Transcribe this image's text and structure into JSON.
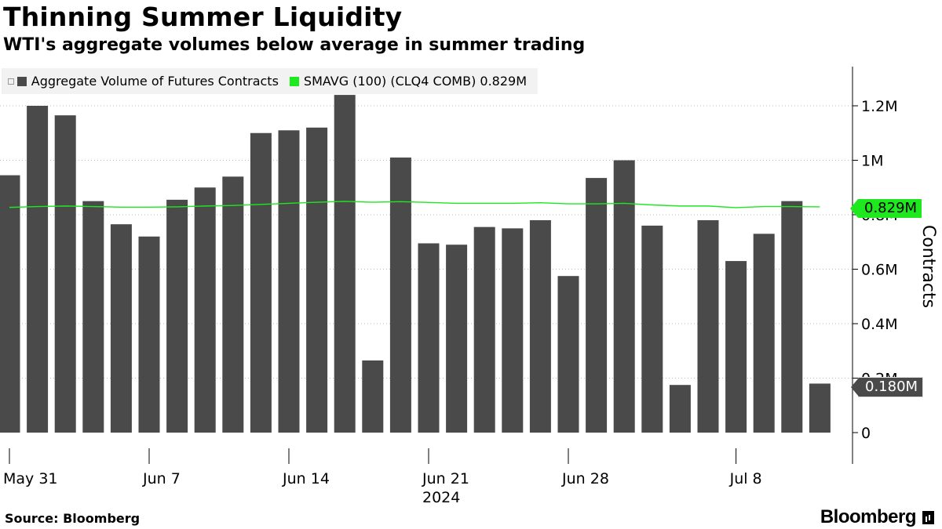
{
  "title": "Thinning Summer Liquidity",
  "subtitle": "WTI's aggregate volumes below average in summer trading",
  "legend": {
    "bars_label": "Aggregate Volume of Futures Contracts",
    "avg_label": "SMAVG (100) (CLQ4 COMB) 0.829M"
  },
  "tags": {
    "avg": "0.829M",
    "last": "0.180M"
  },
  "footer": {
    "source": "Source: Bloomberg",
    "brand": "Bloomberg"
  },
  "colors": {
    "bars": "#4a4a4a",
    "avg_line": "#1ee81e",
    "axis": "#000000"
  },
  "chart_data": {
    "type": "bar",
    "title": "Thinning Summer Liquidity",
    "ylabel": "Contracts",
    "ylim": [
      0,
      1.3
    ],
    "y_unit": "M",
    "y_ticks": [
      0,
      0.2,
      0.4,
      0.6,
      0.8,
      1.0,
      1.2
    ],
    "y_tick_labels": [
      "0",
      "0.2M",
      "0.4M",
      "0.6M",
      "0.8M",
      "1M",
      "1.2M"
    ],
    "x_tick_labels": [
      "May 31",
      "Jun 7",
      "Jun 14",
      "Jun 21",
      "Jun 28",
      "Jul 8"
    ],
    "x_year_label": "2024",
    "categories": [
      "May 31",
      "Jun 3",
      "Jun 4",
      "Jun 5",
      "Jun 6",
      "Jun 7",
      "Jun 10",
      "Jun 11",
      "Jun 12",
      "Jun 13",
      "Jun 14",
      "Jun 17",
      "Jun 18",
      "Jun 19",
      "Jun 20",
      "Jun 21",
      "Jun 24",
      "Jun 25",
      "Jun 26",
      "Jun 27",
      "Jun 28",
      "Jul 1",
      "Jul 2",
      "Jul 3",
      "Jul 4",
      "Jul 5",
      "Jul 8",
      "Jul 9",
      "Jul 10",
      "Jul 11"
    ],
    "series": [
      {
        "name": "Aggregate Volume of Futures Contracts",
        "kind": "bar",
        "values": [
          0.945,
          1.2,
          1.165,
          0.85,
          0.765,
          0.72,
          0.855,
          0.9,
          0.94,
          1.1,
          1.11,
          1.12,
          1.24,
          0.265,
          1.01,
          0.695,
          0.69,
          0.755,
          0.75,
          0.78,
          0.575,
          0.935,
          1.0,
          0.76,
          0.175,
          0.78,
          0.63,
          0.73,
          0.85,
          0.18
        ]
      },
      {
        "name": "SMAVG (100) (CLQ4 COMB)",
        "kind": "line",
        "values": [
          0.827,
          0.83,
          0.832,
          0.83,
          0.828,
          0.828,
          0.829,
          0.832,
          0.834,
          0.838,
          0.842,
          0.846,
          0.849,
          0.846,
          0.848,
          0.845,
          0.842,
          0.842,
          0.842,
          0.844,
          0.84,
          0.84,
          0.842,
          0.836,
          0.832,
          0.832,
          0.826,
          0.83,
          0.83,
          0.829
        ]
      }
    ]
  }
}
